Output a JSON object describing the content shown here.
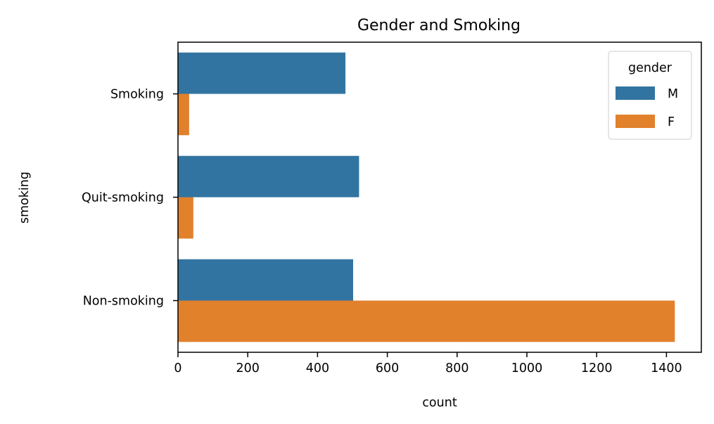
{
  "chart_data": {
    "type": "bar",
    "orientation": "horizontal",
    "title": "Gender and Smoking",
    "xlabel": "count",
    "ylabel": "smoking",
    "categories": [
      "Smoking",
      "Quit-smoking",
      "Non-smoking"
    ],
    "series": [
      {
        "name": "M",
        "values": [
          480,
          519,
          502
        ]
      },
      {
        "name": "F",
        "values": [
          32,
          44,
          1424
        ]
      }
    ],
    "xlim": [
      0,
      1500
    ],
    "xticks": [
      0,
      200,
      400,
      600,
      800,
      1000,
      1200,
      1400
    ],
    "grid": false,
    "legend": {
      "title": "gender",
      "placement": "top-right"
    }
  },
  "colors": {
    "M": "#3274a1",
    "F": "#e1812c"
  }
}
